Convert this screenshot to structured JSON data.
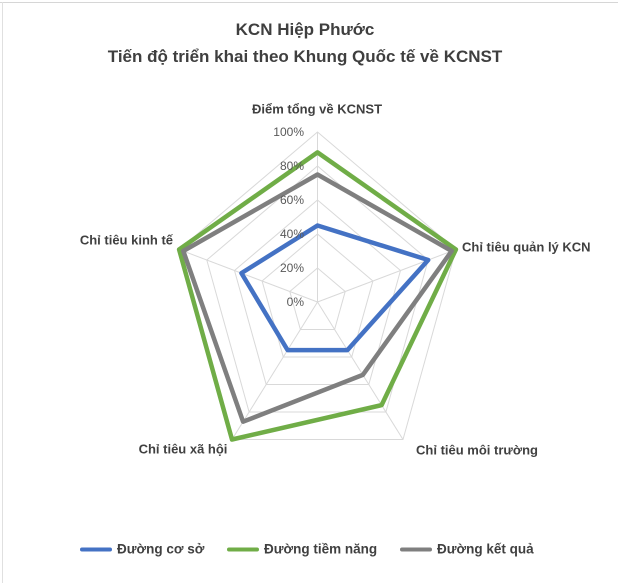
{
  "chart_data": {
    "type": "radar",
    "title": "KCN Hiệp Phước",
    "subtitle": "Tiến độ triển khai theo Khung Quốc tế về KCNST",
    "categories": [
      "Điểm tổng về KCNST",
      "Chỉ tiêu quản lý KCN",
      "Chỉ tiêu môi trường",
      "Chỉ tiêu xã hội",
      "Chỉ tiêu kinh tế"
    ],
    "series": [
      {
        "name": "Đường cơ sở",
        "color": "#4472C4",
        "values": [
          45,
          80,
          35,
          35,
          55
        ]
      },
      {
        "name": "Đường tiềm năng",
        "color": "#70AD47",
        "values": [
          88,
          100,
          75,
          100,
          100
        ]
      },
      {
        "name": "Đường kết quả",
        "color": "#7F7F7F",
        "values": [
          75,
          97,
          53,
          87,
          97
        ]
      }
    ],
    "value_axis": {
      "min": 0,
      "max": 100,
      "unit": "%",
      "ticks": [
        "0%",
        "20%",
        "40%",
        "60%",
        "80%",
        "100%"
      ],
      "grid": true
    },
    "legend_position": "bottom",
    "grid_color": "#D9D9D9"
  }
}
